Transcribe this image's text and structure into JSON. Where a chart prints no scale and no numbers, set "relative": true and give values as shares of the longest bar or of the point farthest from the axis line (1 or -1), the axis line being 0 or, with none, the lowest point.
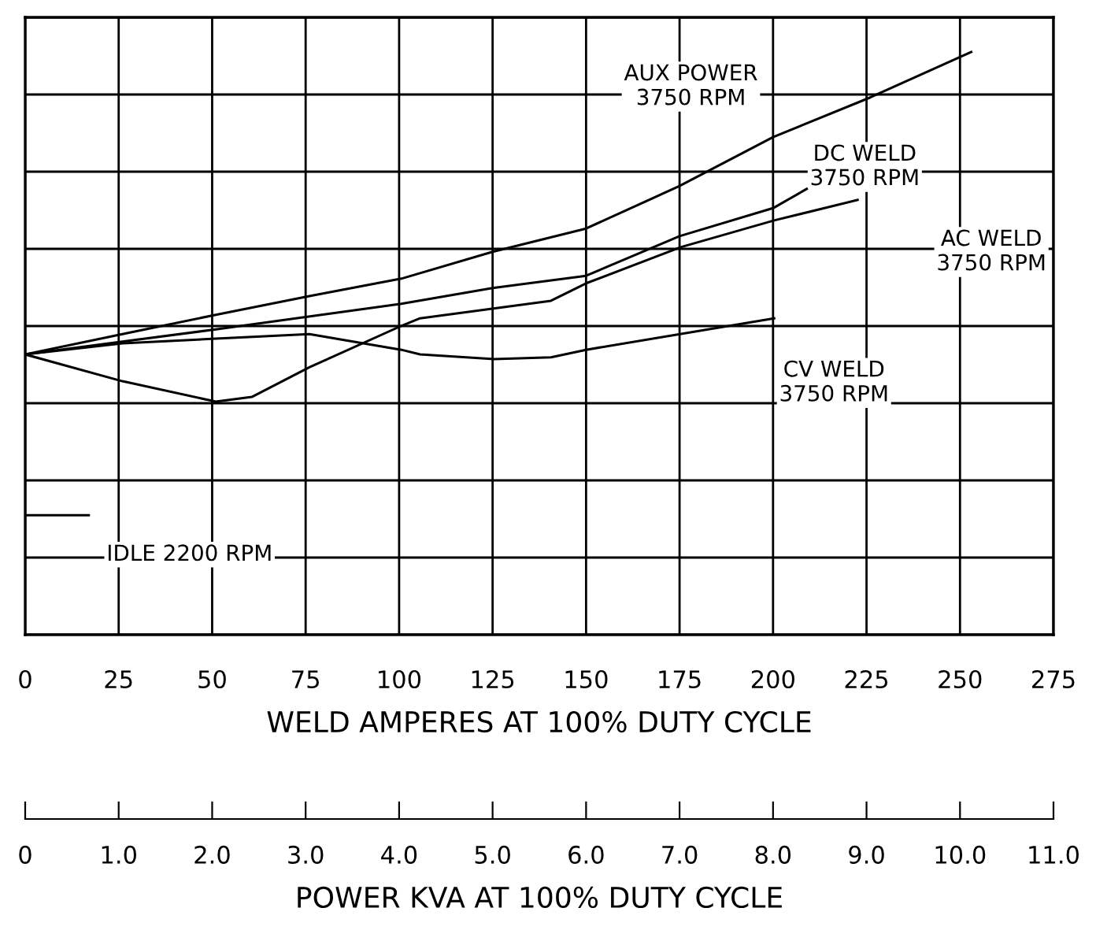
{
  "chart_data": {
    "type": "line",
    "relative": true,
    "xlabel": "WELD AMPERES AT 100% DUTY CYCLE",
    "x2label": "POWER KVA AT 100% DUTY CYCLE",
    "xlim": [
      0,
      275
    ],
    "xticks": [
      0,
      25,
      50,
      75,
      100,
      125,
      150,
      175,
      200,
      225,
      250,
      275
    ],
    "x2lim": [
      0,
      11
    ],
    "x2ticks": [
      0,
      {
        "value": 1,
        "label": "1.0"
      },
      {
        "value": 2,
        "label": "2.0"
      },
      {
        "value": 3,
        "label": "3.0"
      },
      {
        "value": 4,
        "label": "4.0"
      },
      {
        "value": 5,
        "label": "5.0"
      },
      {
        "value": 6,
        "label": "6.0"
      },
      {
        "value": 7,
        "label": "7.0"
      },
      {
        "value": 8,
        "label": "8.0"
      },
      {
        "value": 9,
        "label": "9.0"
      },
      {
        "value": 10,
        "label": "10.0"
      },
      {
        "value": 11,
        "label": "11.0"
      }
    ],
    "grid": true,
    "legend": false,
    "series": [
      {
        "name": "AUX POWER\n3750 RPM",
        "color": "#000000",
        "x": [
          0,
          26,
          51,
          76,
          100.6,
          125,
          150,
          175,
          200,
          226,
          253
        ],
        "values": [
          0.481,
          0.516,
          0.549,
          0.581,
          0.611,
          0.657,
          0.697,
          0.77,
          0.854,
          0.922,
          1.0
        ]
      },
      {
        "name": "DC WELD\n3750 RPM",
        "color": "#000000",
        "x": [
          0,
          26,
          51,
          100.6,
          125,
          150,
          175,
          200,
          209
        ],
        "values": [
          0.481,
          0.503,
          0.524,
          0.568,
          0.595,
          0.616,
          0.684,
          0.732,
          0.765
        ]
      },
      {
        "name": "AC WELD\n3750 RPM",
        "color": "#000000",
        "x": [
          0,
          26,
          51,
          60.6,
          76,
          100.6,
          105.6,
          140.6,
          150,
          175.3,
          200.3,
          222.6
        ],
        "values": [
          0.481,
          0.435,
          0.4,
          0.408,
          0.459,
          0.53,
          0.543,
          0.573,
          0.603,
          0.665,
          0.711,
          0.746
        ]
      },
      {
        "name": "CV WELD\n3750 RPM",
        "color": "#000000",
        "x": [
          0,
          26,
          51,
          76,
          100.6,
          105.6,
          125.4,
          140.6,
          150,
          200.3
        ],
        "values": [
          0.481,
          0.5,
          0.508,
          0.516,
          0.489,
          0.481,
          0.473,
          0.476,
          0.489,
          0.543
        ]
      },
      {
        "name": "IDLE 2200 RPM",
        "color": "#000000",
        "x": [
          0,
          17
        ],
        "values": [
          0.205,
          0.205
        ]
      }
    ]
  }
}
